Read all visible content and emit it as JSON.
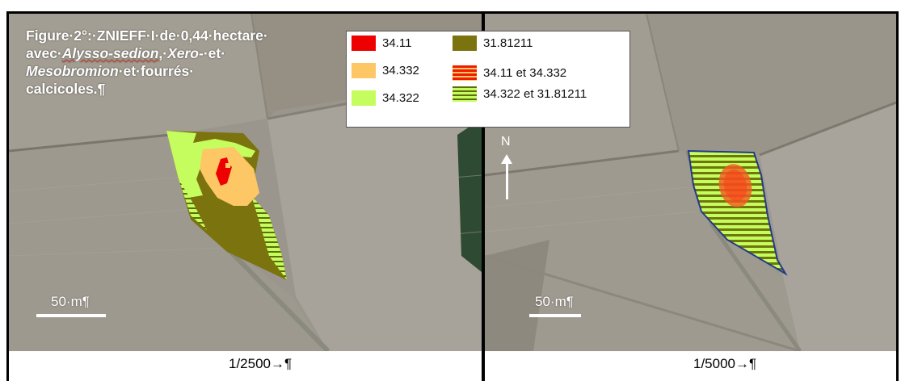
{
  "caption": {
    "line1": "Figure·2°:·ZNIEFF·I·de·0,44·hectare·",
    "avec": "avec·",
    "alysso": "Alysso-sedion",
    "sep": ",·",
    "xero": "Xero-",
    "et1": "·et·",
    "meso": "Mesobromion",
    "rest": "·et·fourrés·",
    "line4": "calcicoles.¶"
  },
  "legend": {
    "items": [
      {
        "code": "34.11",
        "color": "#ee0000"
      },
      {
        "code": "34.332",
        "color": "#fdc765"
      },
      {
        "code": "34.322",
        "color": "#c6fd5e"
      },
      {
        "code": "31.81211",
        "color": "#7b730e"
      },
      {
        "code": "34.11 et 34.332",
        "pattern": "red/orange stripes"
      },
      {
        "code": "34.322 et 31.81211",
        "pattern": "green/olive stripes"
      }
    ]
  },
  "left_map": {
    "scale_label": "50·m¶",
    "ratio": "1/2500→¶"
  },
  "right_map": {
    "scale_label": "50·m¶",
    "ratio": "1/5000→¶",
    "north_label": "N"
  },
  "icons": [
    "north-arrow-icon"
  ]
}
